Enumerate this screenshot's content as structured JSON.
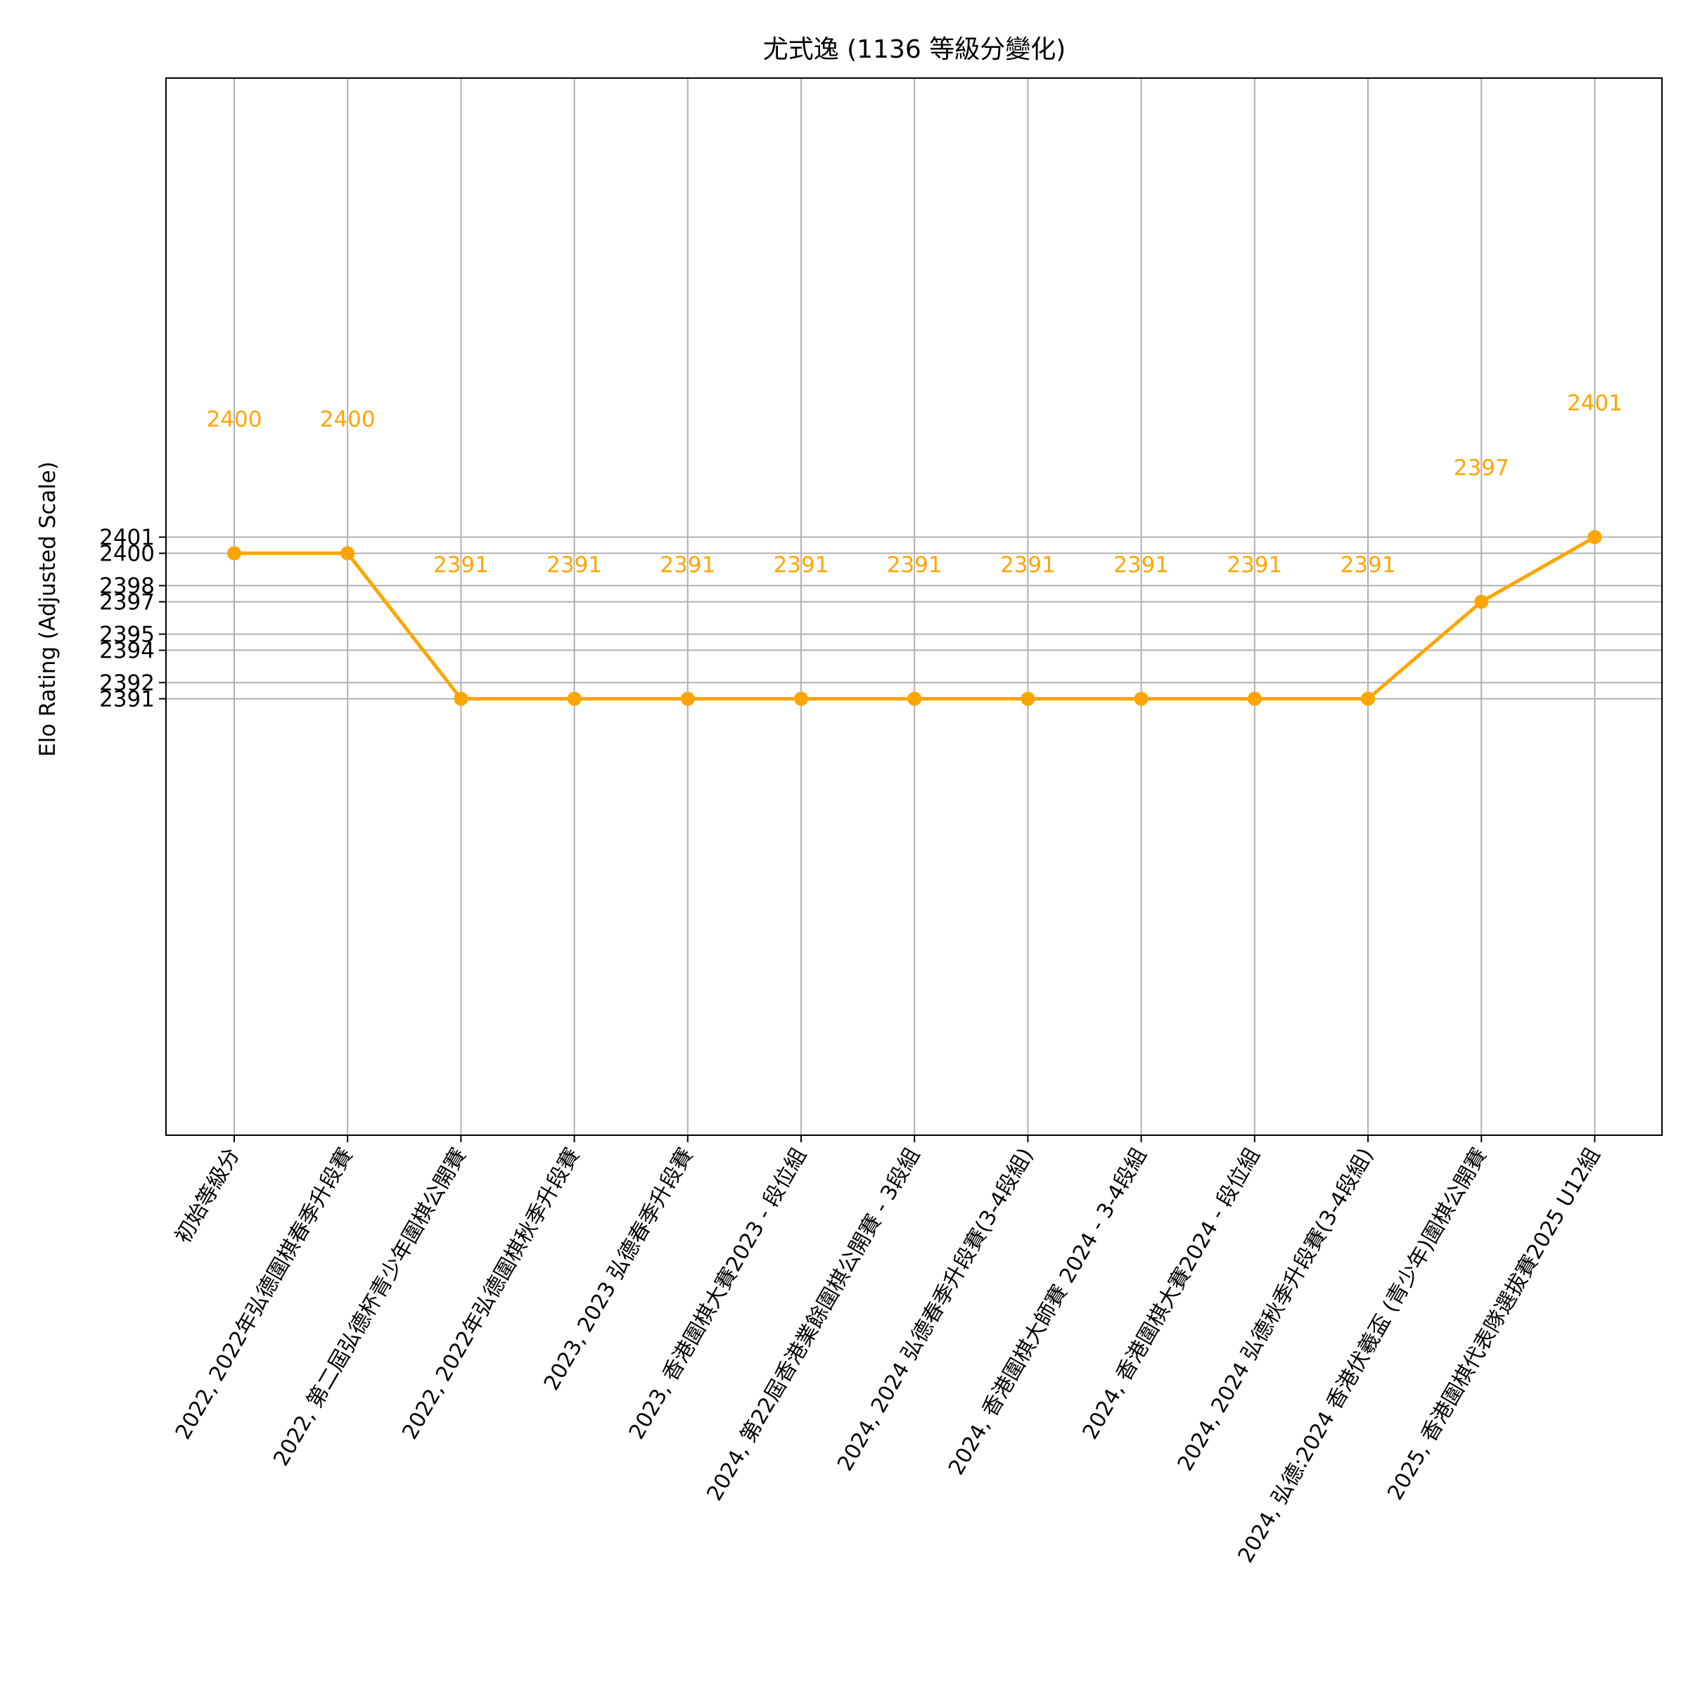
{
  "chart_data": {
    "type": "line",
    "title": "尤式逸 (1136 等級分變化)",
    "xlabel": "",
    "ylabel": "Elo Rating (Adjusted Scale)",
    "categories": [
      "初始等級分",
      "2022, 2022年弘德圍棋春季升段賽",
      "2022, 第二屆弘德杯青少年圍棋公開賽",
      "2022, 2022年弘德圍棋秋季升段賽",
      "2023, 2023 弘德春季升段賽",
      "2023, 香港圍棋大賽2023 - 段位組",
      "2024, 第22屆香港業餘圍棋公開賽 - 3段組",
      "2024, 2024 弘德春季升段賽(3-4段組)",
      "2024, 香港圍棋大師賽 2024 - 3-4段組",
      "2024, 香港圍棋大賽2024 - 段位組",
      "2024, 2024 弘德秋季升段賽(3-4段組)",
      "2024, 弘德:2024 香港伏羲盃 (青少年)圍棋公開賽",
      "2025, 香港圍棋代表隊選拔賽2025 U12組"
    ],
    "values": [
      2400,
      2400,
      2391,
      2391,
      2391,
      2391,
      2391,
      2391,
      2391,
      2391,
      2391,
      2397,
      2401
    ],
    "data_labels": [
      "2400",
      "2400",
      "2391",
      "2391",
      "2391",
      "2391",
      "2391",
      "2391",
      "2391",
      "2391",
      "2391",
      "2397",
      "2401"
    ],
    "yticks": [
      "2391",
      "2392",
      "2394",
      "2395",
      "2397",
      "2398",
      "2400",
      "2401"
    ],
    "ytick_values": [
      2391,
      2392,
      2394,
      2395,
      2397,
      2398,
      2400,
      2401
    ],
    "ylim": [
      2364,
      2429.4
    ],
    "grid": true,
    "colors": {
      "line": "#FFA500",
      "label": "#FFA500",
      "grid": "#b0b0b0",
      "axis": "#000000"
    }
  }
}
